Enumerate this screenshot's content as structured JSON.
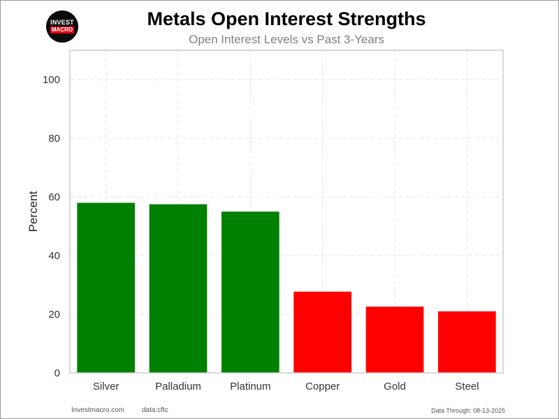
{
  "logo": {
    "line1": "INVEST",
    "line2": "MACRO"
  },
  "footer": {
    "site": "Investmacro.com",
    "source": "data:cftc",
    "date": "Data Through: 08-13-2025"
  },
  "colors": {
    "positive": "#008000",
    "negative": "#ff0000",
    "grid": "#e3e3e3",
    "axis": "#cccccc"
  },
  "chart_data": {
    "type": "bar",
    "title": "Metals Open Interest Strengths",
    "subtitle": "Open Interest Levels vs Past 3-Years",
    "xlabel": "",
    "ylabel": "Percent",
    "categories": [
      "Silver",
      "Palladium",
      "Platinum",
      "Copper",
      "Gold",
      "Steel"
    ],
    "values": [
      58,
      57.5,
      55,
      27.7,
      22.6,
      21
    ],
    "bar_colors": [
      "#008000",
      "#008000",
      "#008000",
      "#ff0000",
      "#ff0000",
      "#ff0000"
    ],
    "ylim": [
      0,
      110
    ],
    "yticks": [
      0,
      20,
      40,
      60,
      80,
      100
    ],
    "grid": true,
    "grid_style": "dashed"
  }
}
